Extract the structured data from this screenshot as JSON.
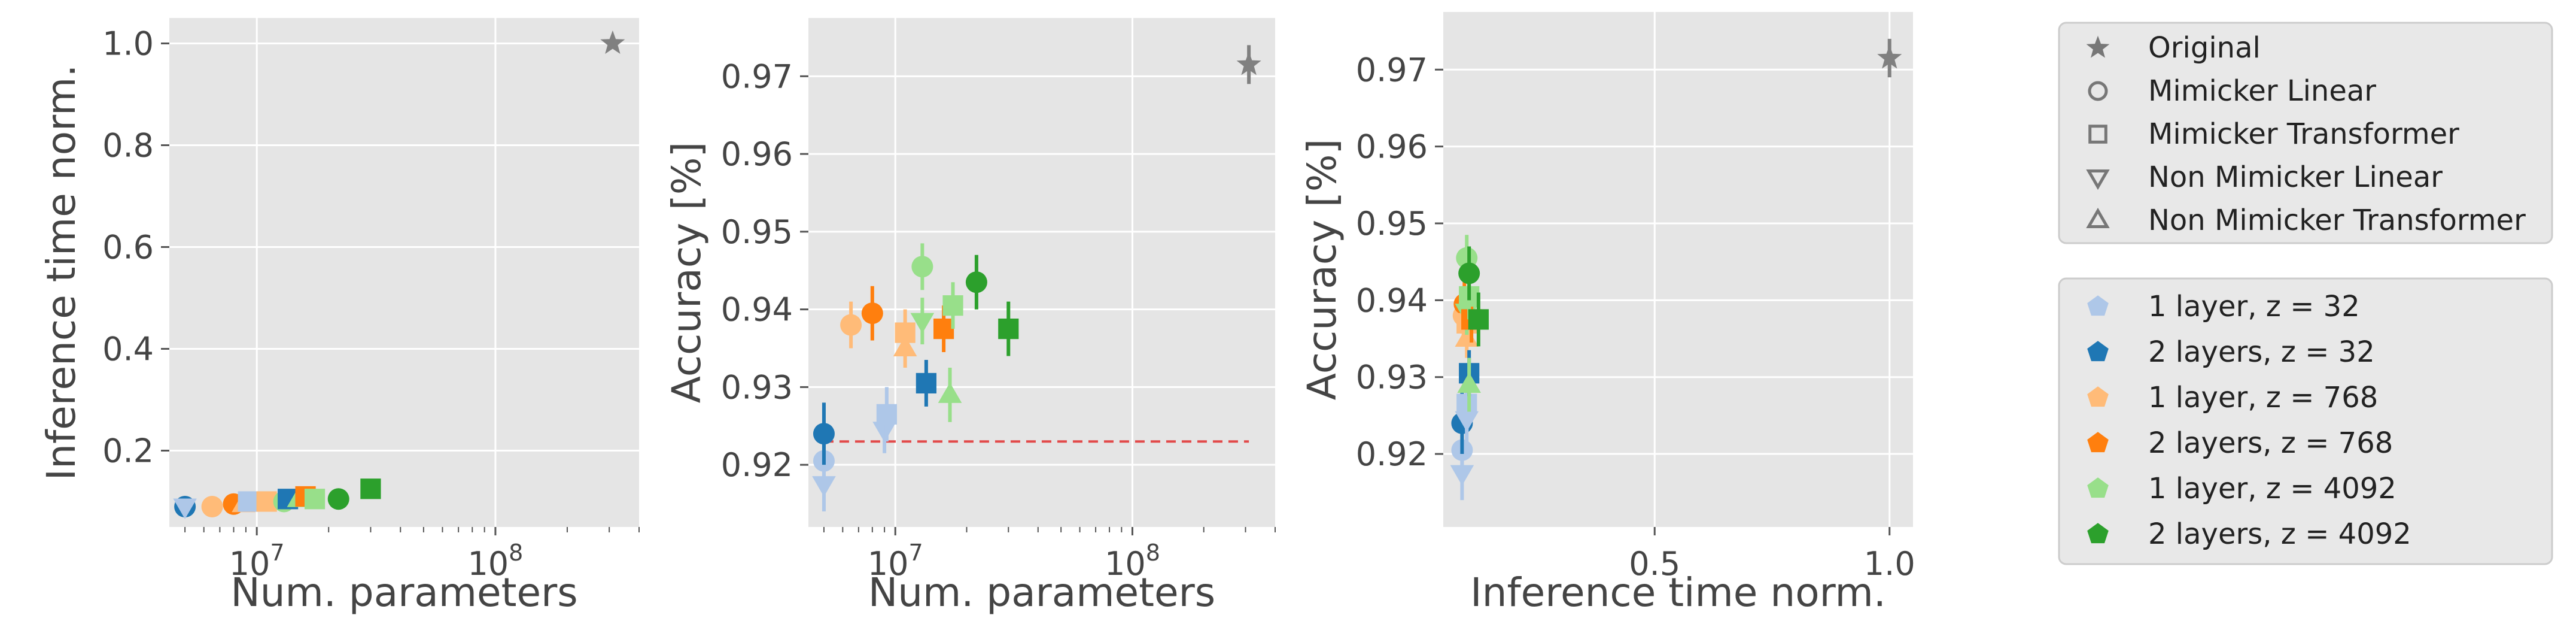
{
  "colors": {
    "panel_bg": "#e5e5e5",
    "grid": "#ffffff",
    "baseline_line": "#e24a4a",
    "original": "#808080",
    "legend_marker_gray": "#777777"
  },
  "marker_legend": {
    "entries": [
      {
        "label": "Original",
        "marker": "star"
      },
      {
        "label": "Mimicker Linear",
        "marker": "circle"
      },
      {
        "label": "Mimicker Transformer",
        "marker": "square"
      },
      {
        "label": "Non Mimicker Linear",
        "marker": "triangle-down"
      },
      {
        "label": "Non Mimicker Transformer",
        "marker": "triangle-up"
      }
    ]
  },
  "color_legend": {
    "entries": [
      {
        "label": "1 layer, z = 32",
        "color": "#aec7e8"
      },
      {
        "label": "2 layers, z = 32",
        "color": "#1f77b4"
      },
      {
        "label": "1 layer, z = 768",
        "color": "#ffbb78"
      },
      {
        "label": "2 layers, z = 768",
        "color": "#ff7f0e"
      },
      {
        "label": "1 layer, z = 4092",
        "color": "#98df8a"
      },
      {
        "label": "2 layers, z = 4092",
        "color": "#2ca02c"
      }
    ]
  },
  "chart_data": [
    {
      "type": "scatter",
      "xlabel": "Num. parameters",
      "ylabel": "Inference time norm.",
      "x_scale": "log",
      "xlim": [
        4300000,
        400000000
      ],
      "ylim": [
        0.05,
        1.05
      ],
      "x_tick_labels": [
        {
          "value": 10000000,
          "base": "10",
          "exp": "7"
        },
        {
          "value": 100000000,
          "base": "10",
          "exp": "8"
        }
      ],
      "y_ticks": [
        0.2,
        0.4,
        0.6,
        0.8,
        1.0
      ],
      "y_tick_labels": [
        "0.2",
        "0.4",
        "0.6",
        "0.8",
        "1.0"
      ],
      "grid": true,
      "points": [
        {
          "x": 5000000,
          "y": 0.09,
          "marker": "circle",
          "color": "#1f77b4"
        },
        {
          "x": 5000000,
          "y": 0.09,
          "marker": "triangle-down",
          "color": "#aec7e8"
        },
        {
          "x": 6500000,
          "y": 0.09,
          "marker": "circle",
          "color": "#ffbb78"
        },
        {
          "x": 8000000,
          "y": 0.095,
          "marker": "circle",
          "color": "#ff7f0e"
        },
        {
          "x": 8800000,
          "y": 0.095,
          "marker": "triangle-up",
          "color": "#ffbb78"
        },
        {
          "x": 9200000,
          "y": 0.1,
          "marker": "square",
          "color": "#aec7e8"
        },
        {
          "x": 11000000,
          "y": 0.1,
          "marker": "square",
          "color": "#ffbb78"
        },
        {
          "x": 13000000,
          "y": 0.1,
          "marker": "circle",
          "color": "#98df8a"
        },
        {
          "x": 13500000,
          "y": 0.105,
          "marker": "square",
          "color": "#1f77b4"
        },
        {
          "x": 15000000,
          "y": 0.105,
          "marker": "triangle-up",
          "color": "#98df8a"
        },
        {
          "x": 16000000,
          "y": 0.11,
          "marker": "square",
          "color": "#ff7f0e"
        },
        {
          "x": 17500000,
          "y": 0.105,
          "marker": "square",
          "color": "#98df8a"
        },
        {
          "x": 22000000,
          "y": 0.105,
          "marker": "circle",
          "color": "#2ca02c"
        },
        {
          "x": 30000000,
          "y": 0.125,
          "marker": "square",
          "color": "#2ca02c"
        },
        {
          "x": 310000000,
          "y": 1.0,
          "marker": "star",
          "color": "#808080"
        }
      ]
    },
    {
      "type": "scatter",
      "xlabel": "Num. parameters",
      "ylabel": "Accuracy [%]",
      "x_scale": "log",
      "xlim": [
        4300000,
        400000000
      ],
      "ylim": [
        0.912,
        0.9775
      ],
      "x_tick_labels": [
        {
          "value": 10000000,
          "base": "10",
          "exp": "7"
        },
        {
          "value": 100000000,
          "base": "10",
          "exp": "8"
        }
      ],
      "y_ticks": [
        0.92,
        0.93,
        0.94,
        0.95,
        0.96,
        0.97
      ],
      "y_tick_labels": [
        "0.92",
        "0.93",
        "0.94",
        "0.95",
        "0.96",
        "0.97"
      ],
      "grid": true,
      "baseline": {
        "y": 0.923,
        "x_start": 5000000,
        "x_end": 310000000,
        "style": "dashed"
      },
      "points": [
        {
          "x": 5000000,
          "y": 0.9175,
          "err": 0.0035,
          "marker": "triangle-down",
          "color": "#aec7e8"
        },
        {
          "x": 5000000,
          "y": 0.9205,
          "err": 0.003,
          "marker": "circle",
          "color": "#aec7e8"
        },
        {
          "x": 5000000,
          "y": 0.924,
          "err": 0.004,
          "marker": "circle",
          "color": "#1f77b4"
        },
        {
          "x": 6500000,
          "y": 0.938,
          "err": 0.003,
          "marker": "circle",
          "color": "#ffbb78"
        },
        {
          "x": 8000000,
          "y": 0.9395,
          "err": 0.0035,
          "marker": "circle",
          "color": "#ff7f0e"
        },
        {
          "x": 9000000,
          "y": 0.9245,
          "err": 0.003,
          "marker": "triangle-down",
          "color": "#aec7e8"
        },
        {
          "x": 9200000,
          "y": 0.9265,
          "err": 0.0035,
          "marker": "square",
          "color": "#aec7e8"
        },
        {
          "x": 11000000,
          "y": 0.935,
          "err": 0.0025,
          "marker": "triangle-up",
          "color": "#ffbb78"
        },
        {
          "x": 11000000,
          "y": 0.937,
          "err": 0.003,
          "marker": "square",
          "color": "#ffbb78"
        },
        {
          "x": 13000000,
          "y": 0.9385,
          "err": 0.003,
          "marker": "triangle-down",
          "color": "#98df8a"
        },
        {
          "x": 13000000,
          "y": 0.9455,
          "err": 0.003,
          "marker": "circle",
          "color": "#98df8a"
        },
        {
          "x": 13500000,
          "y": 0.9305,
          "err": 0.003,
          "marker": "square",
          "color": "#1f77b4"
        },
        {
          "x": 16000000,
          "y": 0.9375,
          "err": 0.003,
          "marker": "square",
          "color": "#ff7f0e"
        },
        {
          "x": 17000000,
          "y": 0.929,
          "err": 0.0035,
          "marker": "triangle-up",
          "color": "#98df8a"
        },
        {
          "x": 17500000,
          "y": 0.9405,
          "err": 0.003,
          "marker": "square",
          "color": "#98df8a"
        },
        {
          "x": 22000000,
          "y": 0.9435,
          "err": 0.0035,
          "marker": "circle",
          "color": "#2ca02c"
        },
        {
          "x": 30000000,
          "y": 0.9375,
          "err": 0.0035,
          "marker": "square",
          "color": "#2ca02c"
        },
        {
          "x": 310000000,
          "y": 0.9715,
          "err": 0.0025,
          "marker": "star",
          "color": "#808080"
        }
      ]
    },
    {
      "type": "scatter",
      "xlabel": "Inference time norm.",
      "ylabel": "Accuracy [%]",
      "x_scale": "linear",
      "xlim": [
        0.05,
        1.05
      ],
      "ylim": [
        0.9105,
        0.9775
      ],
      "x_ticks": [
        0.5,
        1.0
      ],
      "x_tick_labels": [
        "0.5",
        "1.0"
      ],
      "y_ticks": [
        0.92,
        0.93,
        0.94,
        0.95,
        0.96,
        0.97
      ],
      "y_tick_labels": [
        "0.92",
        "0.93",
        "0.94",
        "0.95",
        "0.96",
        "0.97"
      ],
      "grid": true,
      "points": [
        {
          "x": 0.09,
          "y": 0.9175,
          "err": 0.0035,
          "marker": "triangle-down",
          "color": "#aec7e8"
        },
        {
          "x": 0.09,
          "y": 0.9205,
          "err": 0.003,
          "marker": "circle",
          "color": "#aec7e8"
        },
        {
          "x": 0.09,
          "y": 0.924,
          "err": 0.004,
          "marker": "circle",
          "color": "#1f77b4"
        },
        {
          "x": 0.093,
          "y": 0.938,
          "err": 0.003,
          "marker": "circle",
          "color": "#ffbb78"
        },
        {
          "x": 0.095,
          "y": 0.9395,
          "err": 0.0035,
          "marker": "circle",
          "color": "#ff7f0e"
        },
        {
          "x": 0.1,
          "y": 0.9245,
          "err": 0.003,
          "marker": "triangle-down",
          "color": "#aec7e8"
        },
        {
          "x": 0.1,
          "y": 0.9265,
          "err": 0.0035,
          "marker": "square",
          "color": "#aec7e8"
        },
        {
          "x": 0.1,
          "y": 0.935,
          "err": 0.0025,
          "marker": "triangle-up",
          "color": "#ffbb78"
        },
        {
          "x": 0.1,
          "y": 0.937,
          "err": 0.003,
          "marker": "square",
          "color": "#ffbb78"
        },
        {
          "x": 0.1,
          "y": 0.9385,
          "err": 0.003,
          "marker": "triangle-down",
          "color": "#98df8a"
        },
        {
          "x": 0.1,
          "y": 0.9455,
          "err": 0.003,
          "marker": "circle",
          "color": "#98df8a"
        },
        {
          "x": 0.105,
          "y": 0.9305,
          "err": 0.003,
          "marker": "square",
          "color": "#1f77b4"
        },
        {
          "x": 0.11,
          "y": 0.9375,
          "err": 0.003,
          "marker": "square",
          "color": "#ff7f0e"
        },
        {
          "x": 0.105,
          "y": 0.929,
          "err": 0.0035,
          "marker": "triangle-up",
          "color": "#98df8a"
        },
        {
          "x": 0.105,
          "y": 0.9405,
          "err": 0.003,
          "marker": "square",
          "color": "#98df8a"
        },
        {
          "x": 0.105,
          "y": 0.9435,
          "err": 0.0035,
          "marker": "circle",
          "color": "#2ca02c"
        },
        {
          "x": 0.125,
          "y": 0.9375,
          "err": 0.0035,
          "marker": "square",
          "color": "#2ca02c"
        },
        {
          "x": 1.0,
          "y": 0.9715,
          "err": 0.0025,
          "marker": "star",
          "color": "#808080"
        }
      ]
    }
  ]
}
